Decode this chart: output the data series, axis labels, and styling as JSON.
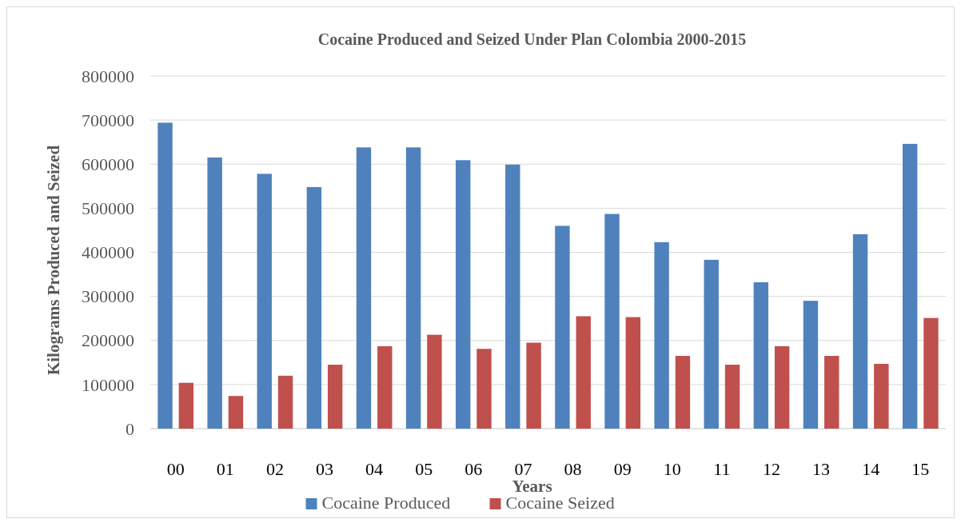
{
  "chart_data": {
    "type": "bar",
    "title": "Cocaine Produced and Seized Under Plan Colombia 2000-2015",
    "xlabel": "Years",
    "ylabel": "Kilograms Produced and Seized",
    "categories": [
      "00",
      "01",
      "02",
      "03",
      "04",
      "05",
      "06",
      "07",
      "08",
      "09",
      "10",
      "11",
      "12",
      "13",
      "14",
      "15"
    ],
    "series": [
      {
        "name": "Cocaine Produced",
        "color": "#4f81bd",
        "values": [
          694000,
          615000,
          578000,
          548000,
          638000,
          638000,
          609000,
          599000,
          460000,
          487000,
          423000,
          383000,
          332000,
          290000,
          441000,
          646000
        ]
      },
      {
        "name": "Cocaine Seized",
        "color": "#c0504d",
        "values": [
          104000,
          74000,
          120000,
          145000,
          187000,
          213000,
          181000,
          195000,
          255000,
          253000,
          165000,
          145000,
          187000,
          165000,
          147000,
          251000
        ]
      }
    ],
    "ylim": [
      0,
      800000
    ],
    "yticks": [
      0,
      100000,
      200000,
      300000,
      400000,
      500000,
      600000,
      700000,
      800000
    ],
    "grid": "y",
    "legend": "bottom"
  }
}
